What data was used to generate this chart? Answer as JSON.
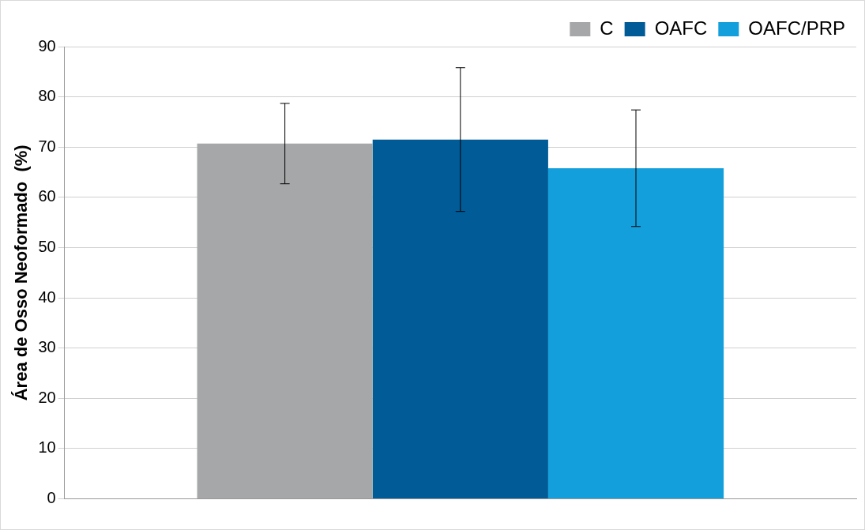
{
  "chart_data": {
    "type": "bar",
    "ylabel": "Área de Osso Neoformado  (%)",
    "categories": [
      null
    ],
    "series": [
      {
        "name": "C",
        "color": "#a6a7a9",
        "values": [
          70.7
        ],
        "errors": [
          8.0
        ]
      },
      {
        "name": "OAFC",
        "color": "#005b96",
        "values": [
          71.5
        ],
        "errors": [
          14.3
        ]
      },
      {
        "name": "OAFC/PRP",
        "color": "#139fdb",
        "values": [
          65.8
        ],
        "errors": [
          11.6
        ]
      }
    ],
    "ylim": [
      0,
      90
    ],
    "yticks": [
      0,
      10,
      20,
      30,
      40,
      50,
      60,
      70,
      80,
      90
    ],
    "grid": "y",
    "legend": "top right"
  }
}
